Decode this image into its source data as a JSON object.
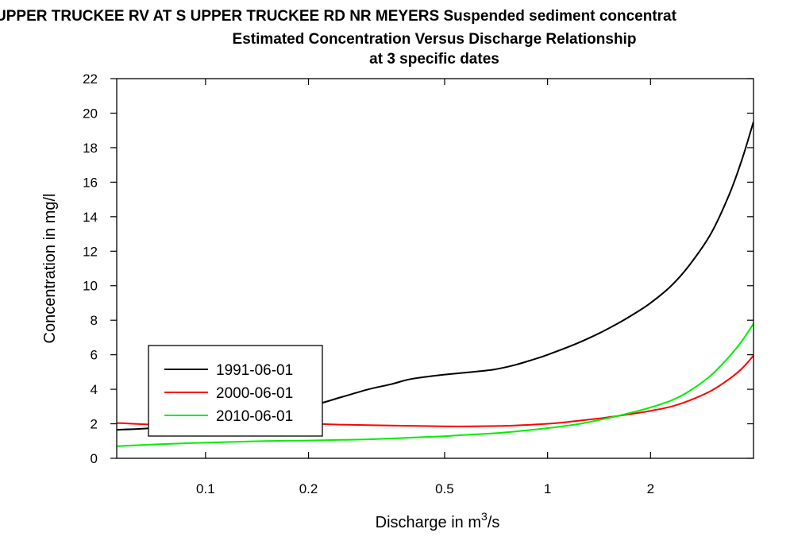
{
  "title": {
    "line1": "UPPER TRUCKEE RV AT S UPPER TRUCKEE RD NR MEYERS    Suspended sediment concentrat",
    "line2": "Estimated Concentration Versus Discharge Relationship",
    "line3": "at 3 specific dates"
  },
  "chart_data": {
    "type": "line",
    "title": "UPPER TRUCKEE RV AT S UPPER TRUCKEE RD NR MEYERS    Suspended sediment concentrat / Estimated Concentration Versus Discharge Relationship / at 3 specific dates",
    "xlabel_prefix": "Discharge in m",
    "xlabel_sup": "3",
    "xlabel_suffix": "/s",
    "ylabel": "Concentration in mg/l",
    "xscale": "log",
    "xlim": [
      0.055,
      4.0
    ],
    "ylim": [
      0,
      22
    ],
    "x_ticks": [
      0.1,
      0.2,
      0.5,
      1,
      2
    ],
    "x_tick_labels": [
      "0.1",
      "0.2",
      "0.5",
      "1",
      "2"
    ],
    "y_ticks": [
      0,
      2,
      4,
      6,
      8,
      10,
      12,
      14,
      16,
      18,
      20,
      22
    ],
    "y_tick_labels": [
      "0",
      "2",
      "4",
      "6",
      "8",
      "10",
      "12",
      "14",
      "16",
      "18",
      "20",
      "22"
    ],
    "grid": false,
    "legend_position": "lower-left",
    "series": [
      {
        "name": "1991-06-01",
        "color": "#000000",
        "x": [
          0.055,
          0.07,
          0.09,
          0.12,
          0.15,
          0.2,
          0.25,
          0.3,
          0.35,
          0.4,
          0.5,
          0.6,
          0.7,
          0.8,
          0.9,
          1.0,
          1.2,
          1.4,
          1.6,
          1.8,
          2.0,
          2.3,
          2.6,
          3.0,
          3.4,
          3.7,
          4.0
        ],
        "y": [
          1.65,
          1.75,
          1.95,
          2.2,
          2.5,
          3.0,
          3.55,
          4.0,
          4.3,
          4.6,
          4.85,
          5.0,
          5.15,
          5.4,
          5.7,
          6.0,
          6.6,
          7.2,
          7.8,
          8.4,
          9.0,
          10.0,
          11.2,
          13.0,
          15.3,
          17.3,
          19.5
        ]
      },
      {
        "name": "2000-06-01",
        "color": "#ff0000",
        "x": [
          0.055,
          0.07,
          0.09,
          0.12,
          0.15,
          0.2,
          0.25,
          0.3,
          0.4,
          0.5,
          0.6,
          0.7,
          0.8,
          1.0,
          1.2,
          1.4,
          1.6,
          1.8,
          2.0,
          2.3,
          2.6,
          3.0,
          3.4,
          3.7,
          4.0
        ],
        "y": [
          2.05,
          1.95,
          1.9,
          1.95,
          2.0,
          2.0,
          1.95,
          1.92,
          1.88,
          1.85,
          1.85,
          1.87,
          1.9,
          2.0,
          2.15,
          2.3,
          2.45,
          2.6,
          2.75,
          3.0,
          3.35,
          3.9,
          4.6,
          5.2,
          5.95
        ]
      },
      {
        "name": "2010-06-01",
        "color": "#00ee00",
        "x": [
          0.055,
          0.07,
          0.09,
          0.12,
          0.15,
          0.2,
          0.25,
          0.3,
          0.4,
          0.5,
          0.6,
          0.7,
          0.8,
          1.0,
          1.2,
          1.4,
          1.6,
          1.8,
          2.0,
          2.3,
          2.6,
          3.0,
          3.4,
          3.7,
          4.0
        ],
        "y": [
          0.7,
          0.8,
          0.88,
          0.95,
          1.0,
          1.03,
          1.07,
          1.1,
          1.2,
          1.28,
          1.38,
          1.45,
          1.55,
          1.75,
          1.95,
          2.2,
          2.45,
          2.7,
          2.95,
          3.35,
          3.9,
          4.8,
          5.9,
          6.8,
          7.8
        ]
      }
    ]
  }
}
